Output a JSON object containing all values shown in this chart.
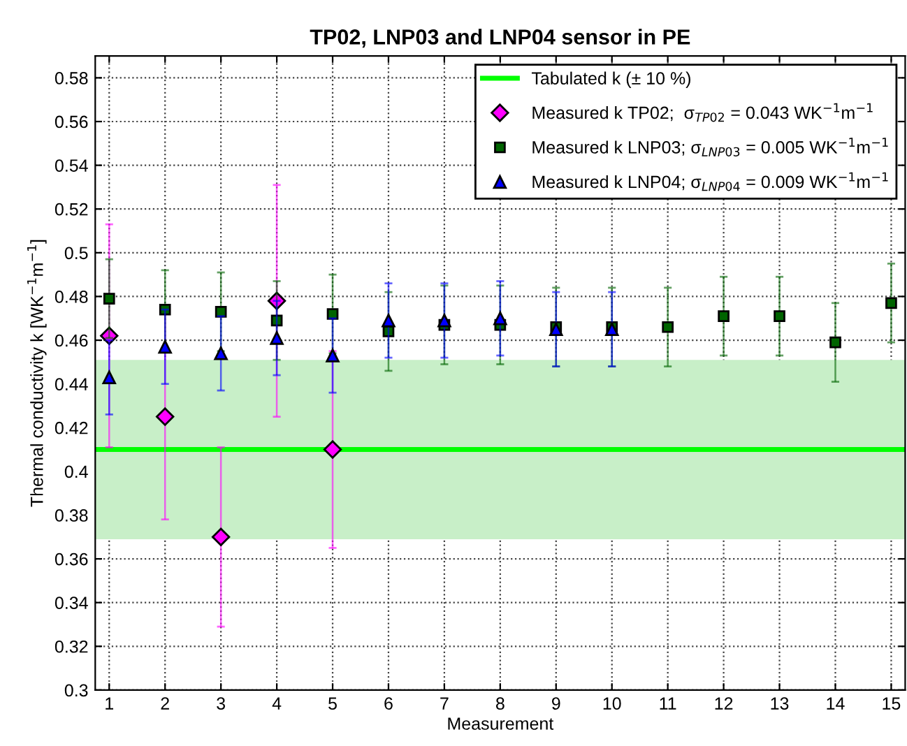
{
  "chart_data": {
    "type": "scatter",
    "title": "TP02, LNP03 and LNP04 sensor in PE",
    "xlabel": "Measurement",
    "ylabel": "Thermal conductivity k [WK$^{−1}$m$^{−1}$]",
    "x": [
      1,
      2,
      3,
      4,
      5,
      6,
      7,
      8,
      9,
      10,
      11,
      12,
      13,
      14,
      15
    ],
    "series": [
      {
        "name": "Measured k TP02;  σ$_{TP02}$ = 0.043 WK$^{−1}$m$^{−1}$",
        "color": "#ff00ff",
        "marker": "diamond",
        "x": [
          1,
          2,
          3,
          4,
          5
        ],
        "values": [
          0.462,
          0.425,
          0.37,
          0.478,
          0.41
        ],
        "errors": [
          0.051,
          0.047,
          0.041,
          0.053,
          0.045
        ]
      },
      {
        "name": "Measured k LNP03; σ$_{LNP03}$ = 0.005 WK$^{−1}$m$^{−1}$",
        "color": "#006400",
        "marker": "square",
        "values": [
          0.479,
          0.474,
          0.473,
          0.469,
          0.472,
          0.464,
          0.467,
          0.467,
          0.466,
          0.466,
          0.466,
          0.471,
          0.471,
          0.459,
          0.477
        ],
        "errors": [
          0.018,
          0.018,
          0.018,
          0.018,
          0.018,
          0.018,
          0.018,
          0.018,
          0.018,
          0.018,
          0.018,
          0.018,
          0.018,
          0.018,
          0.018
        ]
      },
      {
        "name": "Measured k LNP04; σ$_{LNP04}$ = 0.009 WK$^{−1}$m$^{−1}$",
        "color": "#0000ff",
        "marker": "triangle",
        "x": [
          1,
          2,
          3,
          4,
          5,
          6,
          7,
          8,
          9,
          10
        ],
        "values": [
          0.443,
          0.457,
          0.454,
          0.461,
          0.453,
          0.469,
          0.469,
          0.47,
          0.465,
          0.465
        ],
        "errors": [
          0.017,
          0.017,
          0.017,
          0.017,
          0.017,
          0.017,
          0.017,
          0.017,
          0.017,
          0.017
        ]
      }
    ],
    "ref_lines": [
      {
        "axis": "y",
        "value": 0.41,
        "label": "Tabulated k (± 10 %)",
        "color": "#00ff00",
        "line_style": "solid"
      }
    ],
    "bands": [
      {
        "axis": "y",
        "from": 0.369,
        "to": 0.451,
        "color": "#c8efc8"
      }
    ],
    "xlim": [
      0.75,
      15.25
    ],
    "xticks": [
      1,
      2,
      3,
      4,
      5,
      6,
      7,
      8,
      9,
      10,
      11,
      12,
      13,
      14,
      15
    ],
    "ylim": [
      0.3,
      0.59
    ],
    "yticks": [
      0.3,
      0.32,
      0.34,
      0.36,
      0.38,
      0.4,
      0.42,
      0.44,
      0.46,
      0.48,
      0.5,
      0.52,
      0.54,
      0.56,
      0.58
    ],
    "grid": true,
    "legend": "top right"
  }
}
